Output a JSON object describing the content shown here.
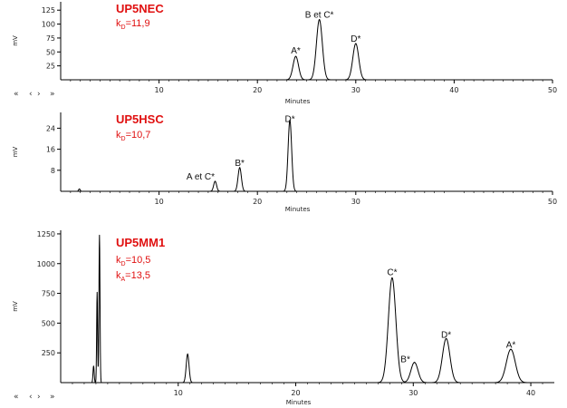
{
  "chart_data": [
    {
      "type": "line",
      "title": "UP5NEC",
      "k_lines": [
        {
          "sub": "D",
          "value": "=11,9"
        }
      ],
      "xlabel": "Minutes",
      "ylabel": "mV",
      "xlim": [
        0,
        50
      ],
      "ylim": [
        0,
        140
      ],
      "x_ticks": [
        "10",
        "20",
        "30",
        "40",
        "50"
      ],
      "y_ticks": [
        "25",
        "50",
        "75",
        "100",
        "125"
      ],
      "trace_end": 34,
      "peaks": [
        {
          "label": "A*",
          "x": 23.9,
          "height": 42,
          "sigma": 0.28
        },
        {
          "label": "B et C*",
          "x": 26.3,
          "height": 108,
          "sigma": 0.3
        },
        {
          "label": "D*",
          "x": 30.0,
          "height": 65,
          "sigma": 0.3
        }
      ],
      "minor_peaks": [],
      "nav": [
        "«",
        "‹",
        "›",
        "»"
      ]
    },
    {
      "type": "line",
      "title": "UP5HSC",
      "k_lines": [
        {
          "sub": "D",
          "value": "=10,7"
        }
      ],
      "xlabel": "Minutes",
      "ylabel": "mV",
      "xlim": [
        0,
        50
      ],
      "ylim": [
        0,
        30
      ],
      "x_ticks": [
        "10",
        "20",
        "30",
        "50"
      ],
      "y_ticks": [
        "8",
        "16",
        "24"
      ],
      "trace_end": 30,
      "peaks": [
        {
          "label": "A et C*",
          "x": 15.7,
          "height": 3.8,
          "sigma": 0.15
        },
        {
          "label": "B*",
          "x": 18.2,
          "height": 9,
          "sigma": 0.17
        },
        {
          "label": "D*",
          "x": 23.3,
          "height": 27,
          "sigma": 0.18
        }
      ],
      "minor_peaks": [
        {
          "x": 1.9,
          "height": 0.9,
          "sigma": 0.08
        }
      ],
      "nav": []
    },
    {
      "type": "line",
      "title": "UP5MM1",
      "k_lines": [
        {
          "sub": "D",
          "value": "=10,5"
        },
        {
          "sub": "A",
          "value": "=13,5"
        }
      ],
      "xlabel": "Minutes",
      "ylabel": "mV",
      "xlim": [
        0,
        42
      ],
      "ylim": [
        0,
        1280
      ],
      "x_ticks": [
        "10",
        "20",
        "30",
        "40"
      ],
      "y_ticks": [
        "250",
        "500",
        "750",
        "1000",
        "1250"
      ],
      "trace_end": 42,
      "peaks": [
        {
          "label": "C*",
          "x": 28.2,
          "height": 880,
          "sigma": 0.32
        },
        {
          "label": "B*",
          "x": 30.1,
          "height": 170,
          "sigma": 0.3
        },
        {
          "label": "D*",
          "x": 32.8,
          "height": 370,
          "sigma": 0.32
        },
        {
          "label": "A*",
          "x": 38.3,
          "height": 280,
          "sigma": 0.38
        }
      ],
      "minor_peaks": [
        {
          "x": 2.8,
          "height": 140,
          "sigma": 0.05
        },
        {
          "x": 3.1,
          "height": 760,
          "sigma": 0.04
        },
        {
          "x": 3.3,
          "height": 1240,
          "sigma": 0.045
        },
        {
          "x": 10.8,
          "height": 240,
          "sigma": 0.12
        }
      ],
      "nav": [
        "«",
        "‹",
        "›",
        "»"
      ]
    }
  ]
}
